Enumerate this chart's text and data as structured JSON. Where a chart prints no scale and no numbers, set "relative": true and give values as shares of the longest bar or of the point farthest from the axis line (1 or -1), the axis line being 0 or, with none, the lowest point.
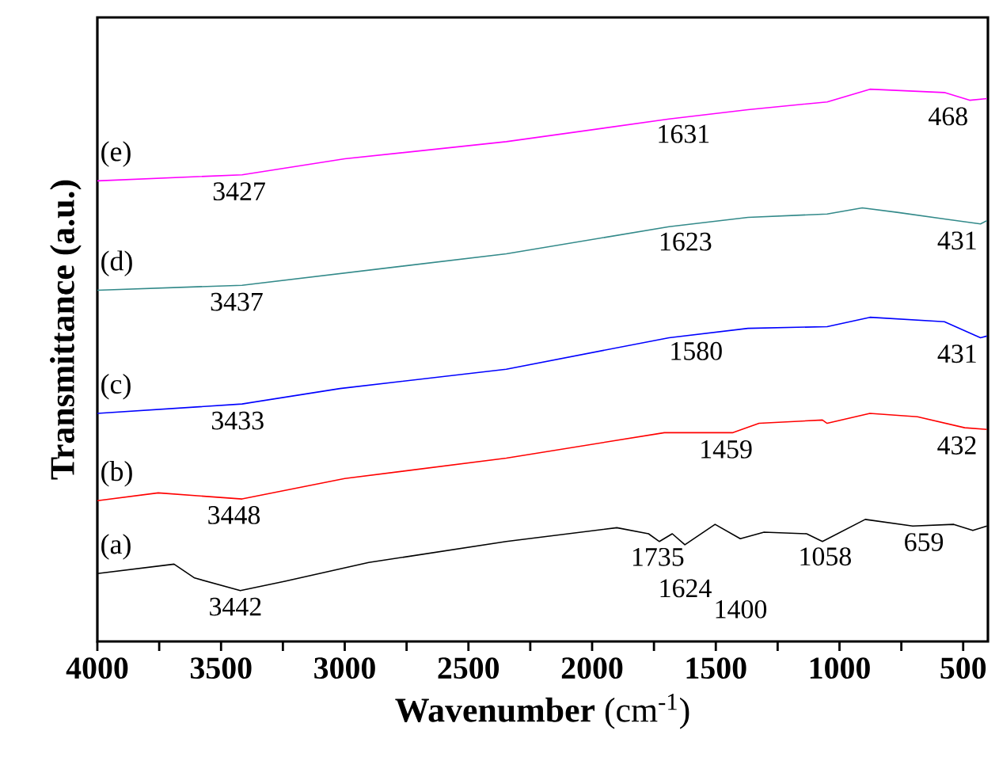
{
  "chart_data": {
    "type": "line",
    "relative": true,
    "xlabel": "**Wavenumber** (cm$^{-1}$)",
    "ylabel": "Transmittance (a.u.)",
    "xlim": [
      4000,
      400
    ],
    "xticks": [
      4000,
      {
        "value": 3750,
        "label": null
      },
      3500,
      {
        "value": 3250,
        "label": null
      },
      3000,
      {
        "value": 2750,
        "label": null
      },
      2500,
      {
        "value": 2250,
        "label": null
      },
      2000,
      {
        "value": 1750,
        "label": null
      },
      1500,
      {
        "value": 1250,
        "label": null
      },
      1000,
      {
        "value": 750,
        "label": null
      },
      500
    ],
    "grid": false,
    "legend": false,
    "marker": "none",
    "line_style": "solid",
    "tick_labels": "x",
    "series": [
      {
        "name": "(a)",
        "color": "#000000",
        "x": [
          4000,
          3690,
          3607,
          3422,
          3242,
          2903,
          2347,
          1900,
          1772,
          1728,
          1676,
          1625,
          1503,
          1401,
          1305,
          1133,
          1069,
          896,
          704,
          538,
          461,
          404
        ],
        "values": [
          0.123,
          0.14,
          0.115,
          0.092,
          0.109,
          0.143,
          0.181,
          0.206,
          0.195,
          0.181,
          0.195,
          0.175,
          0.212,
          0.186,
          0.198,
          0.195,
          0.181,
          0.221,
          0.209,
          0.212,
          0.201,
          0.209
        ]
      },
      {
        "name": "(b)",
        "color": "#ff0000",
        "x": [
          4000,
          3754,
          3415,
          3000,
          2347,
          1708,
          1433,
          1325,
          1069,
          1050,
          877,
          685,
          494,
          404
        ],
        "values": [
          0.255,
          0.269,
          0.258,
          0.295,
          0.332,
          0.378,
          0.378,
          0.395,
          0.401,
          0.395,
          0.413,
          0.407,
          0.387,
          0.384
        ]
      },
      {
        "name": "(c)",
        "color": "#0000ff",
        "x": [
          4000,
          3415,
          3019,
          2347,
          1689,
          1370,
          1050,
          877,
          576,
          430,
          404
        ],
        "values": [
          0.413,
          0.43,
          0.458,
          0.493,
          0.55,
          0.567,
          0.57,
          0.587,
          0.579,
          0.55,
          0.553
        ]
      },
      {
        "name": "(d)",
        "color": "#338a8a",
        "x": [
          4000,
          3415,
          2347,
          1689,
          1370,
          1050,
          908,
          767,
          576,
          430,
          404
        ],
        "values": [
          0.636,
          0.645,
          0.702,
          0.751,
          0.768,
          0.774,
          0.785,
          0.777,
          0.765,
          0.756,
          0.762
        ]
      },
      {
        "name": "(e)",
        "color": "#ff00ff",
        "x": [
          4000,
          3415,
          3000,
          2347,
          1689,
          1370,
          1050,
          877,
          576,
          474,
          404
        ],
        "values": [
          0.834,
          0.845,
          0.874,
          0.905,
          0.946,
          0.963,
          0.977,
          1.0,
          0.994,
          0.98,
          0.983
        ]
      }
    ],
    "annotations": [
      {
        "text": "3442",
        "x": 3442,
        "y": 0.093
      },
      {
        "text": "1735",
        "x": 1735,
        "y": 0.183
      },
      {
        "text": "1624",
        "x": 1624,
        "y": 0.175
      },
      {
        "text": "1400",
        "x": 1400,
        "y": 0.186
      },
      {
        "text": "1058",
        "x": 1058,
        "y": 0.184
      },
      {
        "text": "659",
        "x": 659,
        "y": 0.21
      },
      {
        "text": "3448",
        "x": 3448,
        "y": 0.259
      },
      {
        "text": "1459",
        "x": 1459,
        "y": 0.378
      },
      {
        "text": "432",
        "x": 432,
        "y": 0.385
      },
      {
        "text": "3433",
        "x": 3433,
        "y": 0.43
      },
      {
        "text": "1580",
        "x": 1580,
        "y": 0.556
      },
      {
        "text": "431",
        "x": 431,
        "y": 0.551
      },
      {
        "text": "3437",
        "x": 3437,
        "y": 0.645
      },
      {
        "text": "1623",
        "x": 1623,
        "y": 0.754
      },
      {
        "text": "431",
        "x": 431,
        "y": 0.756
      },
      {
        "text": "3427",
        "x": 3427,
        "y": 0.845
      },
      {
        "text": "1631",
        "x": 1631,
        "y": 0.949
      },
      {
        "text": "468",
        "x": 468,
        "y": 0.981
      }
    ]
  }
}
